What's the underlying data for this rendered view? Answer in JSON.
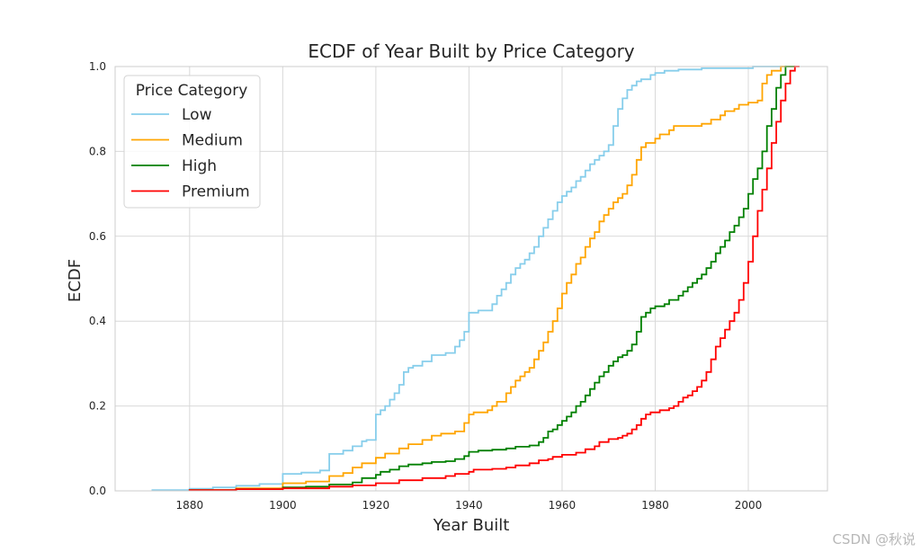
{
  "chart_data": {
    "type": "line",
    "step": true,
    "title": "ECDF of Year Built by Price Category",
    "xlabel": "Year Built",
    "ylabel": "ECDF",
    "xlim": [
      1864,
      2017
    ],
    "ylim": [
      0,
      1.0
    ],
    "xticks": [
      1880,
      1900,
      1920,
      1940,
      1960,
      1980,
      2000
    ],
    "yticks": [
      0.0,
      0.2,
      0.4,
      0.6,
      0.8,
      1.0
    ],
    "ytick_labels": [
      "0.0",
      "0.2",
      "0.4",
      "0.6",
      "0.8",
      "1.0"
    ],
    "grid": true,
    "legend": {
      "title": "Price Category",
      "position": "top-left"
    },
    "series": [
      {
        "name": "Low",
        "color": "#87ceeb",
        "points": [
          [
            1872,
            0.0
          ],
          [
            1872,
            0.002
          ],
          [
            1880,
            0.005
          ],
          [
            1885,
            0.008
          ],
          [
            1890,
            0.012
          ],
          [
            1895,
            0.016
          ],
          [
            1900,
            0.04
          ],
          [
            1904,
            0.043
          ],
          [
            1908,
            0.048
          ],
          [
            1910,
            0.087
          ],
          [
            1913,
            0.095
          ],
          [
            1915,
            0.105
          ],
          [
            1917,
            0.117
          ],
          [
            1918,
            0.12
          ],
          [
            1920,
            0.18
          ],
          [
            1921,
            0.19
          ],
          [
            1922,
            0.2
          ],
          [
            1923,
            0.215
          ],
          [
            1924,
            0.23
          ],
          [
            1925,
            0.25
          ],
          [
            1926,
            0.28
          ],
          [
            1927,
            0.29
          ],
          [
            1928,
            0.295
          ],
          [
            1930,
            0.305
          ],
          [
            1932,
            0.32
          ],
          [
            1935,
            0.325
          ],
          [
            1937,
            0.34
          ],
          [
            1938,
            0.355
          ],
          [
            1939,
            0.375
          ],
          [
            1940,
            0.42
          ],
          [
            1942,
            0.425
          ],
          [
            1945,
            0.44
          ],
          [
            1946,
            0.46
          ],
          [
            1947,
            0.475
          ],
          [
            1948,
            0.49
          ],
          [
            1949,
            0.51
          ],
          [
            1950,
            0.525
          ],
          [
            1951,
            0.535
          ],
          [
            1952,
            0.545
          ],
          [
            1953,
            0.56
          ],
          [
            1954,
            0.575
          ],
          [
            1955,
            0.6
          ],
          [
            1956,
            0.62
          ],
          [
            1957,
            0.64
          ],
          [
            1958,
            0.66
          ],
          [
            1959,
            0.68
          ],
          [
            1960,
            0.695
          ],
          [
            1961,
            0.705
          ],
          [
            1962,
            0.715
          ],
          [
            1963,
            0.73
          ],
          [
            1964,
            0.74
          ],
          [
            1965,
            0.755
          ],
          [
            1966,
            0.77
          ],
          [
            1967,
            0.78
          ],
          [
            1968,
            0.79
          ],
          [
            1969,
            0.8
          ],
          [
            1970,
            0.815
          ],
          [
            1971,
            0.86
          ],
          [
            1972,
            0.9
          ],
          [
            1973,
            0.925
          ],
          [
            1974,
            0.945
          ],
          [
            1975,
            0.955
          ],
          [
            1976,
            0.965
          ],
          [
            1977,
            0.97
          ],
          [
            1979,
            0.98
          ],
          [
            1980,
            0.985
          ],
          [
            1982,
            0.99
          ],
          [
            1985,
            0.993
          ],
          [
            1990,
            0.996
          ],
          [
            2001,
            0.998
          ],
          [
            2001,
            1.0
          ],
          [
            2010,
            1.0
          ]
        ]
      },
      {
        "name": "Medium",
        "color": "#ffa500",
        "points": [
          [
            1880,
            0.0
          ],
          [
            1880,
            0.002
          ],
          [
            1890,
            0.006
          ],
          [
            1900,
            0.018
          ],
          [
            1905,
            0.022
          ],
          [
            1910,
            0.035
          ],
          [
            1913,
            0.042
          ],
          [
            1915,
            0.055
          ],
          [
            1917,
            0.065
          ],
          [
            1920,
            0.078
          ],
          [
            1922,
            0.088
          ],
          [
            1925,
            0.1
          ],
          [
            1927,
            0.11
          ],
          [
            1930,
            0.12
          ],
          [
            1932,
            0.13
          ],
          [
            1934,
            0.135
          ],
          [
            1937,
            0.14
          ],
          [
            1939,
            0.16
          ],
          [
            1940,
            0.18
          ],
          [
            1941,
            0.185
          ],
          [
            1944,
            0.19
          ],
          [
            1945,
            0.2
          ],
          [
            1946,
            0.21
          ],
          [
            1948,
            0.23
          ],
          [
            1949,
            0.245
          ],
          [
            1950,
            0.26
          ],
          [
            1951,
            0.27
          ],
          [
            1952,
            0.28
          ],
          [
            1953,
            0.29
          ],
          [
            1954,
            0.31
          ],
          [
            1955,
            0.33
          ],
          [
            1956,
            0.35
          ],
          [
            1957,
            0.375
          ],
          [
            1958,
            0.4
          ],
          [
            1959,
            0.43
          ],
          [
            1960,
            0.465
          ],
          [
            1961,
            0.49
          ],
          [
            1962,
            0.51
          ],
          [
            1963,
            0.535
          ],
          [
            1964,
            0.55
          ],
          [
            1965,
            0.575
          ],
          [
            1966,
            0.595
          ],
          [
            1967,
            0.61
          ],
          [
            1968,
            0.635
          ],
          [
            1969,
            0.65
          ],
          [
            1970,
            0.665
          ],
          [
            1971,
            0.68
          ],
          [
            1972,
            0.69
          ],
          [
            1973,
            0.7
          ],
          [
            1974,
            0.72
          ],
          [
            1975,
            0.745
          ],
          [
            1976,
            0.78
          ],
          [
            1977,
            0.81
          ],
          [
            1978,
            0.82
          ],
          [
            1980,
            0.83
          ],
          [
            1981,
            0.84
          ],
          [
            1983,
            0.85
          ],
          [
            1984,
            0.86
          ],
          [
            1990,
            0.865
          ],
          [
            1992,
            0.875
          ],
          [
            1994,
            0.885
          ],
          [
            1995,
            0.895
          ],
          [
            1997,
            0.9
          ],
          [
            1998,
            0.91
          ],
          [
            2000,
            0.915
          ],
          [
            2002,
            0.92
          ],
          [
            2003,
            0.96
          ],
          [
            2004,
            0.98
          ],
          [
            2005,
            0.99
          ],
          [
            2007,
            0.995
          ],
          [
            2007,
            1.0
          ],
          [
            2010,
            1.0
          ]
        ]
      },
      {
        "name": "High",
        "color": "#008000",
        "points": [
          [
            1880,
            0.0
          ],
          [
            1880,
            0.002
          ],
          [
            1890,
            0.004
          ],
          [
            1900,
            0.008
          ],
          [
            1905,
            0.01
          ],
          [
            1910,
            0.015
          ],
          [
            1915,
            0.02
          ],
          [
            1917,
            0.03
          ],
          [
            1920,
            0.038
          ],
          [
            1921,
            0.045
          ],
          [
            1923,
            0.05
          ],
          [
            1925,
            0.058
          ],
          [
            1927,
            0.062
          ],
          [
            1930,
            0.065
          ],
          [
            1932,
            0.068
          ],
          [
            1935,
            0.07
          ],
          [
            1937,
            0.075
          ],
          [
            1939,
            0.082
          ],
          [
            1940,
            0.092
          ],
          [
            1942,
            0.095
          ],
          [
            1945,
            0.097
          ],
          [
            1948,
            0.1
          ],
          [
            1950,
            0.104
          ],
          [
            1953,
            0.107
          ],
          [
            1955,
            0.115
          ],
          [
            1956,
            0.125
          ],
          [
            1957,
            0.14
          ],
          [
            1958,
            0.145
          ],
          [
            1959,
            0.155
          ],
          [
            1960,
            0.165
          ],
          [
            1961,
            0.175
          ],
          [
            1962,
            0.185
          ],
          [
            1963,
            0.2
          ],
          [
            1964,
            0.21
          ],
          [
            1965,
            0.225
          ],
          [
            1966,
            0.24
          ],
          [
            1967,
            0.255
          ],
          [
            1968,
            0.27
          ],
          [
            1969,
            0.28
          ],
          [
            1970,
            0.295
          ],
          [
            1971,
            0.305
          ],
          [
            1972,
            0.315
          ],
          [
            1973,
            0.32
          ],
          [
            1974,
            0.33
          ],
          [
            1975,
            0.345
          ],
          [
            1976,
            0.375
          ],
          [
            1977,
            0.41
          ],
          [
            1978,
            0.42
          ],
          [
            1979,
            0.43
          ],
          [
            1980,
            0.435
          ],
          [
            1982,
            0.44
          ],
          [
            1983,
            0.45
          ],
          [
            1985,
            0.46
          ],
          [
            1986,
            0.47
          ],
          [
            1987,
            0.48
          ],
          [
            1988,
            0.49
          ],
          [
            1989,
            0.5
          ],
          [
            1990,
            0.51
          ],
          [
            1991,
            0.525
          ],
          [
            1992,
            0.54
          ],
          [
            1993,
            0.56
          ],
          [
            1994,
            0.575
          ],
          [
            1995,
            0.59
          ],
          [
            1996,
            0.61
          ],
          [
            1997,
            0.625
          ],
          [
            1998,
            0.645
          ],
          [
            1999,
            0.665
          ],
          [
            2000,
            0.7
          ],
          [
            2001,
            0.735
          ],
          [
            2002,
            0.76
          ],
          [
            2003,
            0.8
          ],
          [
            2004,
            0.86
          ],
          [
            2005,
            0.9
          ],
          [
            2006,
            0.95
          ],
          [
            2007,
            0.98
          ],
          [
            2008,
            0.99
          ],
          [
            2008,
            1.0
          ],
          [
            2010,
            1.0
          ]
        ]
      },
      {
        "name": "Premium",
        "color": "#ff0000",
        "points": [
          [
            1880,
            0.0
          ],
          [
            1880,
            0.002
          ],
          [
            1890,
            0.004
          ],
          [
            1900,
            0.006
          ],
          [
            1910,
            0.01
          ],
          [
            1915,
            0.013
          ],
          [
            1920,
            0.018
          ],
          [
            1925,
            0.025
          ],
          [
            1930,
            0.03
          ],
          [
            1935,
            0.035
          ],
          [
            1937,
            0.04
          ],
          [
            1940,
            0.045
          ],
          [
            1941,
            0.05
          ],
          [
            1945,
            0.052
          ],
          [
            1948,
            0.055
          ],
          [
            1950,
            0.06
          ],
          [
            1953,
            0.065
          ],
          [
            1955,
            0.072
          ],
          [
            1957,
            0.075
          ],
          [
            1958,
            0.08
          ],
          [
            1960,
            0.085
          ],
          [
            1963,
            0.09
          ],
          [
            1965,
            0.098
          ],
          [
            1967,
            0.105
          ],
          [
            1968,
            0.115
          ],
          [
            1970,
            0.122
          ],
          [
            1972,
            0.125
          ],
          [
            1973,
            0.13
          ],
          [
            1974,
            0.135
          ],
          [
            1975,
            0.145
          ],
          [
            1976,
            0.155
          ],
          [
            1977,
            0.17
          ],
          [
            1978,
            0.18
          ],
          [
            1979,
            0.185
          ],
          [
            1981,
            0.19
          ],
          [
            1983,
            0.195
          ],
          [
            1984,
            0.2
          ],
          [
            1985,
            0.21
          ],
          [
            1986,
            0.22
          ],
          [
            1987,
            0.225
          ],
          [
            1988,
            0.235
          ],
          [
            1989,
            0.245
          ],
          [
            1990,
            0.26
          ],
          [
            1991,
            0.28
          ],
          [
            1992,
            0.31
          ],
          [
            1993,
            0.34
          ],
          [
            1994,
            0.36
          ],
          [
            1995,
            0.38
          ],
          [
            1996,
            0.4
          ],
          [
            1997,
            0.42
          ],
          [
            1998,
            0.45
          ],
          [
            1999,
            0.49
          ],
          [
            2000,
            0.54
          ],
          [
            2001,
            0.6
          ],
          [
            2002,
            0.66
          ],
          [
            2003,
            0.71
          ],
          [
            2004,
            0.76
          ],
          [
            2005,
            0.82
          ],
          [
            2006,
            0.87
          ],
          [
            2007,
            0.92
          ],
          [
            2008,
            0.96
          ],
          [
            2009,
            0.99
          ],
          [
            2010,
            0.995
          ],
          [
            2010,
            1.0
          ],
          [
            2011,
            1.0
          ]
        ]
      }
    ]
  },
  "watermark": "CSDN @秋说"
}
